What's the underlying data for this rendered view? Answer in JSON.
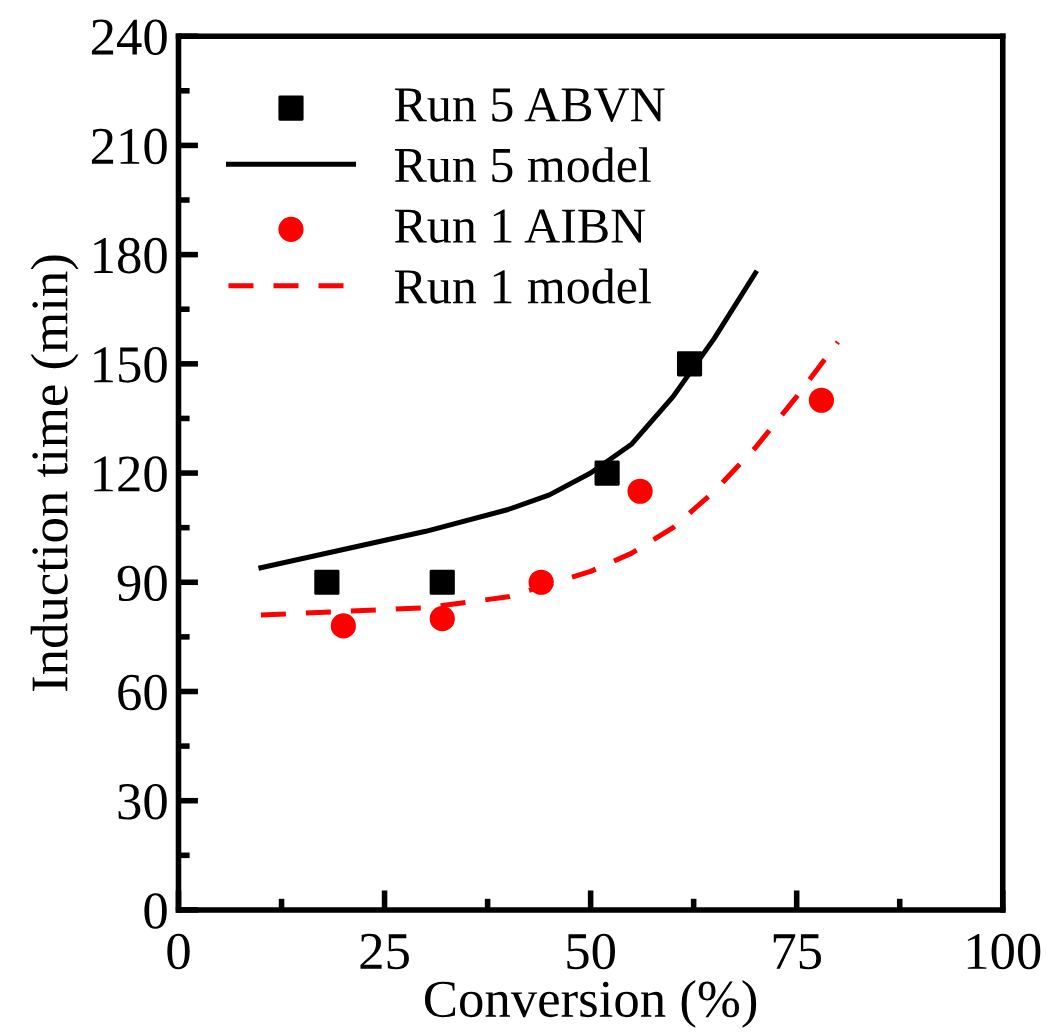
{
  "chart_data": {
    "type": "scatter",
    "xlabel": "Conversion (%)",
    "ylabel": "Induction time (min)",
    "xlim": [
      0,
      100
    ],
    "xticks": [
      0,
      25,
      50,
      75,
      100
    ],
    "ylim": [
      0,
      240
    ],
    "yticks": [
      0,
      30,
      60,
      90,
      120,
      150,
      180,
      210,
      240
    ],
    "legend": "top left",
    "grid": false,
    "series": [
      {
        "name": "Run 5 ABVN",
        "marker": "square",
        "color": "#000000",
        "x": [
          18,
          32,
          52,
          62
        ],
        "values": [
          90,
          90,
          120,
          150
        ]
      },
      {
        "name": "Run 5 model",
        "type": "line",
        "line_style": "solid",
        "marker": "none",
        "color": "#000000",
        "x": [
          10,
          20,
          30,
          40,
          45,
          50,
          55,
          60,
          65,
          70
        ],
        "values": [
          94,
          99,
          104,
          110,
          114,
          120,
          128,
          141,
          157,
          175
        ]
      },
      {
        "name": "Run 1 AIBN",
        "marker": "circle",
        "color": "#ff0000",
        "x": [
          20,
          32,
          44,
          56,
          78
        ],
        "values": [
          78,
          80,
          90,
          115,
          140
        ]
      },
      {
        "name": "Run 1 model",
        "type": "line",
        "line_style": "dashed",
        "marker": "none",
        "color": "#ff0000",
        "x": [
          10,
          20,
          30,
          40,
          50,
          55,
          60,
          65,
          70,
          75,
          80
        ],
        "values": [
          81,
          82,
          83,
          86,
          93,
          98,
          105,
          115,
          127,
          141,
          156
        ]
      }
    ]
  }
}
